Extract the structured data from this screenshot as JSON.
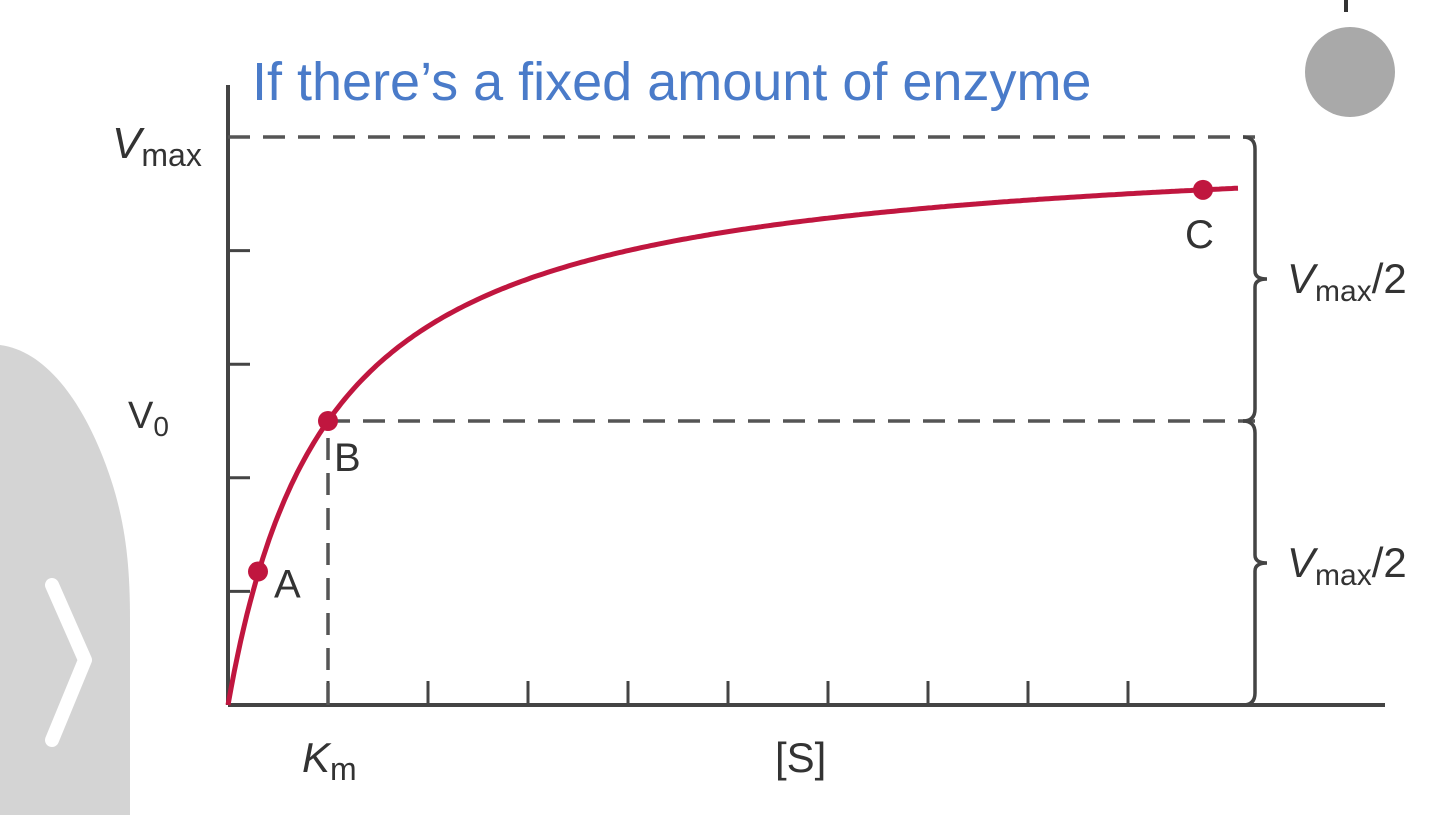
{
  "colors": {
    "curve": "#c0163f",
    "axis": "#444444",
    "dash": "#555555",
    "title": "#4a7bc9",
    "side_tab": "#d4d4d4",
    "dot": "#a9a9a9"
  },
  "icons": {
    "side_tab": "chevron-right-icon",
    "indicator": "circle-icon"
  },
  "chart_data": {
    "type": "line",
    "title": "If there’s a fixed amount of enzyme",
    "x_axis_label": "[S]",
    "y_axis_label_main": "V",
    "y_axis_label_sub": "0",
    "vmax_label": {
      "main": "V",
      "sub": "max"
    },
    "km_label": {
      "main": "K",
      "sub": "m"
    },
    "vmax": 1,
    "km": 1,
    "xlim": [
      0,
      9.2
    ],
    "ylim": [
      0,
      1
    ],
    "y_ticks": [
      0.2,
      0.4,
      0.6,
      0.8
    ],
    "x_ticks": [
      1,
      2,
      3,
      4,
      5,
      6,
      7,
      8,
      9
    ],
    "grid": false,
    "series": [
      {
        "curve": "michaelis-menten",
        "x_start": 0,
        "x_end": 10.1
      }
    ],
    "points": [
      {
        "label": "A",
        "x": 0.3,
        "y": 0.235
      },
      {
        "label": "B",
        "x": 1.0,
        "y": 0.5
      },
      {
        "label": "C",
        "x": 9.75,
        "y": 0.907
      }
    ],
    "reference_lines": [
      {
        "kind": "horizontal",
        "y": 1.0,
        "x_from": 0,
        "x_to": 10.27
      },
      {
        "kind": "horizontal",
        "y": 0.5,
        "x_from": 1.0,
        "x_to": 10.27
      },
      {
        "kind": "vertical",
        "x": 1.0,
        "y_from": 0,
        "y_to": 0.5
      }
    ],
    "brackets": [
      {
        "x": 10.27,
        "y_from": 0.5,
        "y_to": 1.0,
        "label_main": "V",
        "label_sub": "max",
        "label_suffix": "/2"
      },
      {
        "x": 10.27,
        "y_from": 0,
        "y_to": 0.5,
        "label_main": "V",
        "label_sub": "max",
        "label_suffix": "/2"
      }
    ]
  }
}
